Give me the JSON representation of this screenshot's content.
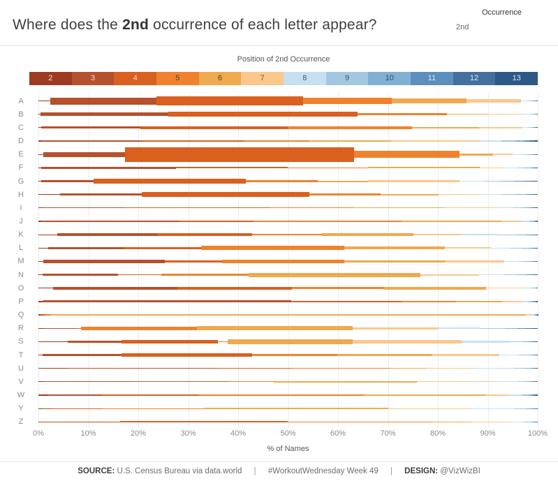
{
  "header": {
    "title_prefix": "Where does the ",
    "title_bold": "2nd",
    "title_suffix": " occurrence of each letter appear?",
    "occurrence_control": {
      "label": "Occurrence",
      "value": "2nd"
    }
  },
  "legend": {
    "title": "Position of 2nd Occurrence",
    "positions": [
      "2",
      "3",
      "4",
      "5",
      "6",
      "7",
      "8",
      "9",
      "10",
      "11",
      "12",
      "13"
    ],
    "colors": [
      "#9c3b22",
      "#b5512d",
      "#d9601f",
      "#f0822d",
      "#efa94e",
      "#fbc78d",
      "#c7e0f1",
      "#a3c7e0",
      "#7fb0d4",
      "#5d8fbd",
      "#44709d",
      "#2c5985"
    ],
    "label_colors": [
      "#f0ded6",
      "#f0ded6",
      "#f6e2d8",
      "#54422e",
      "#54422e",
      "#6b5a43",
      "#49596a",
      "#42526b",
      "#37475e",
      "#dde6f0",
      "#dde6f0",
      "#dde6f0"
    ]
  },
  "chart_data": {
    "type": "stacked-bar",
    "description": "Each row is a letter; segments are % of names whose 2nd occurrence of that letter falls at character position 2-13. Segment thickness encodes relative volume of names (px per 1%).",
    "positions": [
      2,
      3,
      4,
      5,
      6,
      7,
      8,
      9,
      10,
      11,
      12,
      13
    ],
    "x_range_pct": [
      0,
      100
    ],
    "rows": [
      {
        "letter": "A",
        "scale": 0.47,
        "values": [
          2.4,
          21.2,
          29.4,
          17.8,
          14.9,
          10.9,
          1.4,
          0.8,
          0.5,
          0.3,
          0.2,
          0.2
        ]
      },
      {
        "letter": "B",
        "scale": 0.18,
        "values": [
          0.4,
          25.6,
          37.9,
          17.9,
          8.2,
          7.3,
          1.2,
          0.6,
          0.4,
          0.2,
          0.2,
          0.1
        ]
      },
      {
        "letter": "C",
        "scale": 0.16,
        "values": [
          0.6,
          19.8,
          29.6,
          24.8,
          13.5,
          8.6,
          1.2,
          0.7,
          0.5,
          0.3,
          0.2,
          0.2
        ]
      },
      {
        "letter": "D",
        "scale": 0.14,
        "values": [
          0.7,
          20.0,
          20.5,
          13.0,
          16.5,
          17.5,
          4.5,
          2.8,
          1.8,
          1.2,
          0.8,
          0.7
        ]
      },
      {
        "letter": "E",
        "scale": 0.45,
        "values": [
          1.0,
          16.4,
          45.8,
          21.1,
          6.7,
          4.0,
          2.0,
          1.2,
          0.8,
          0.4,
          0.3,
          0.3
        ]
      },
      {
        "letter": "F",
        "scale": 0.09,
        "values": [
          0.5,
          27.0,
          22.5,
          16.0,
          22.4,
          5.0,
          2.5,
          1.5,
          1.0,
          0.6,
          0.5,
          0.5
        ]
      },
      {
        "letter": "G",
        "scale": 0.2,
        "values": [
          0.5,
          10.6,
          30.4,
          14.5,
          9.9,
          18.5,
          5.0,
          3.5,
          2.5,
          2.0,
          1.3,
          1.3
        ]
      },
      {
        "letter": "H",
        "scale": 0.2,
        "values": [
          4.3,
          16.4,
          33.6,
          14.2,
          11.6,
          8.0,
          4.5,
          3.0,
          2.0,
          1.2,
          0.7,
          0.5
        ]
      },
      {
        "letter": "I",
        "scale": 0.045,
        "values": [
          1.0,
          16.3,
          29.1,
          16.8,
          18.2,
          10.2,
          3.5,
          2.0,
          1.2,
          0.7,
          0.5,
          0.5
        ]
      },
      {
        "letter": "J",
        "scale": 0.045,
        "values": [
          0.5,
          27.7,
          14.9,
          29.7,
          20.0,
          4.0,
          1.5,
          0.7,
          0.4,
          0.3,
          0.2,
          0.1
        ]
      },
      {
        "letter": "K",
        "scale": 0.19,
        "values": [
          3.8,
          20.0,
          19.0,
          13.8,
          18.5,
          9.7,
          7.5,
          3.5,
          2.0,
          1.2,
          0.6,
          0.4
        ]
      },
      {
        "letter": "L",
        "scale": 0.21,
        "values": [
          2.0,
          15.0,
          15.6,
          28.6,
          20.2,
          9.2,
          4.0,
          2.2,
          1.4,
          0.8,
          0.5,
          0.5
        ]
      },
      {
        "letter": "M",
        "scale": 0.19,
        "values": [
          1.0,
          24.3,
          11.5,
          24.4,
          20.2,
          11.9,
          3.0,
          1.5,
          1.0,
          0.5,
          0.4,
          0.3
        ]
      },
      {
        "letter": "N",
        "scale": 0.17,
        "values": [
          0.8,
          15.2,
          8.6,
          17.5,
          34.4,
          11.8,
          5.0,
          2.7,
          1.7,
          1.0,
          0.7,
          0.6
        ]
      },
      {
        "letter": "O",
        "scale": 0.17,
        "values": [
          2.9,
          25.0,
          22.8,
          18.5,
          20.4,
          8.0,
          1.0,
          0.5,
          0.4,
          0.2,
          0.2,
          0.1
        ]
      },
      {
        "letter": "P",
        "scale": 0.06,
        "values": [
          1.0,
          49.7,
          22.1,
          10.9,
          9.2,
          4.1,
          1.2,
          0.7,
          0.5,
          0.3,
          0.2,
          0.1
        ]
      },
      {
        "letter": "Q",
        "scale": 0.015,
        "values": [
          0.3,
          0.5,
          0.7,
          1.0,
          95.0,
          1.2,
          0.5,
          0.3,
          0.2,
          0.15,
          0.1,
          0.05
        ]
      },
      {
        "letter": "R",
        "scale": 0.2,
        "values": [
          1.2,
          6.3,
          1.0,
          23.3,
          31.2,
          17.0,
          8.5,
          5.0,
          2.5,
          1.5,
          1.2,
          1.3
        ]
      },
      {
        "letter": "S",
        "scale": 0.25,
        "values": [
          5.9,
          10.8,
          19.2,
          2.0,
          25.0,
          21.8,
          9.6,
          2.5,
          1.2,
          0.8,
          0.7,
          0.5
        ]
      },
      {
        "letter": "T",
        "scale": 0.18,
        "values": [
          0.8,
          15.9,
          26.1,
          17.1,
          18.9,
          13.5,
          4.0,
          1.7,
          0.9,
          0.5,
          0.4,
          0.2
        ]
      },
      {
        "letter": "U",
        "scale": 0.045,
        "values": [
          5.9,
          30.0,
          14.8,
          19.8,
          7.3,
          9.8,
          7.7,
          2.2,
          1.2,
          0.6,
          0.4,
          0.3
        ]
      },
      {
        "letter": "V",
        "scale": 0.06,
        "values": [
          1.0,
          18.0,
          19.2,
          8.9,
          28.7,
          16.2,
          4.0,
          1.8,
          1.0,
          0.5,
          0.4,
          0.3
        ]
      },
      {
        "letter": "W",
        "scale": 0.05,
        "values": [
          1.8,
          11.0,
          19.4,
          33.1,
          24.3,
          4.7,
          2.5,
          1.2,
          0.8,
          0.5,
          0.4,
          0.3
        ]
      },
      {
        "letter": "Y",
        "scale": 0.045,
        "values": [
          0.9,
          2.0,
          10.0,
          20.3,
          36.9,
          16.3,
          8.9,
          2.5,
          1.0,
          0.6,
          0.4,
          0.2
        ]
      },
      {
        "letter": "Z",
        "scale": 0.05,
        "values": [
          0.5,
          15.9,
          33.6,
          29.0,
          7.7,
          7.9,
          2.4,
          1.2,
          0.8,
          0.5,
          0.3,
          0.2
        ]
      }
    ]
  },
  "x_axis": {
    "ticks": [
      "0%",
      "10%",
      "20%",
      "30%",
      "40%",
      "50%",
      "60%",
      "70%",
      "80%",
      "90%",
      "100%"
    ],
    "label": "% of Names"
  },
  "footer": {
    "source_label": "SOURCE:",
    "source_text": "U.S. Census Bureau via data.world",
    "separator": "|",
    "middle_text": "#WorkoutWednesday Week 49",
    "design_label": "DESIGN:",
    "design_text": "@VizWizBI"
  }
}
